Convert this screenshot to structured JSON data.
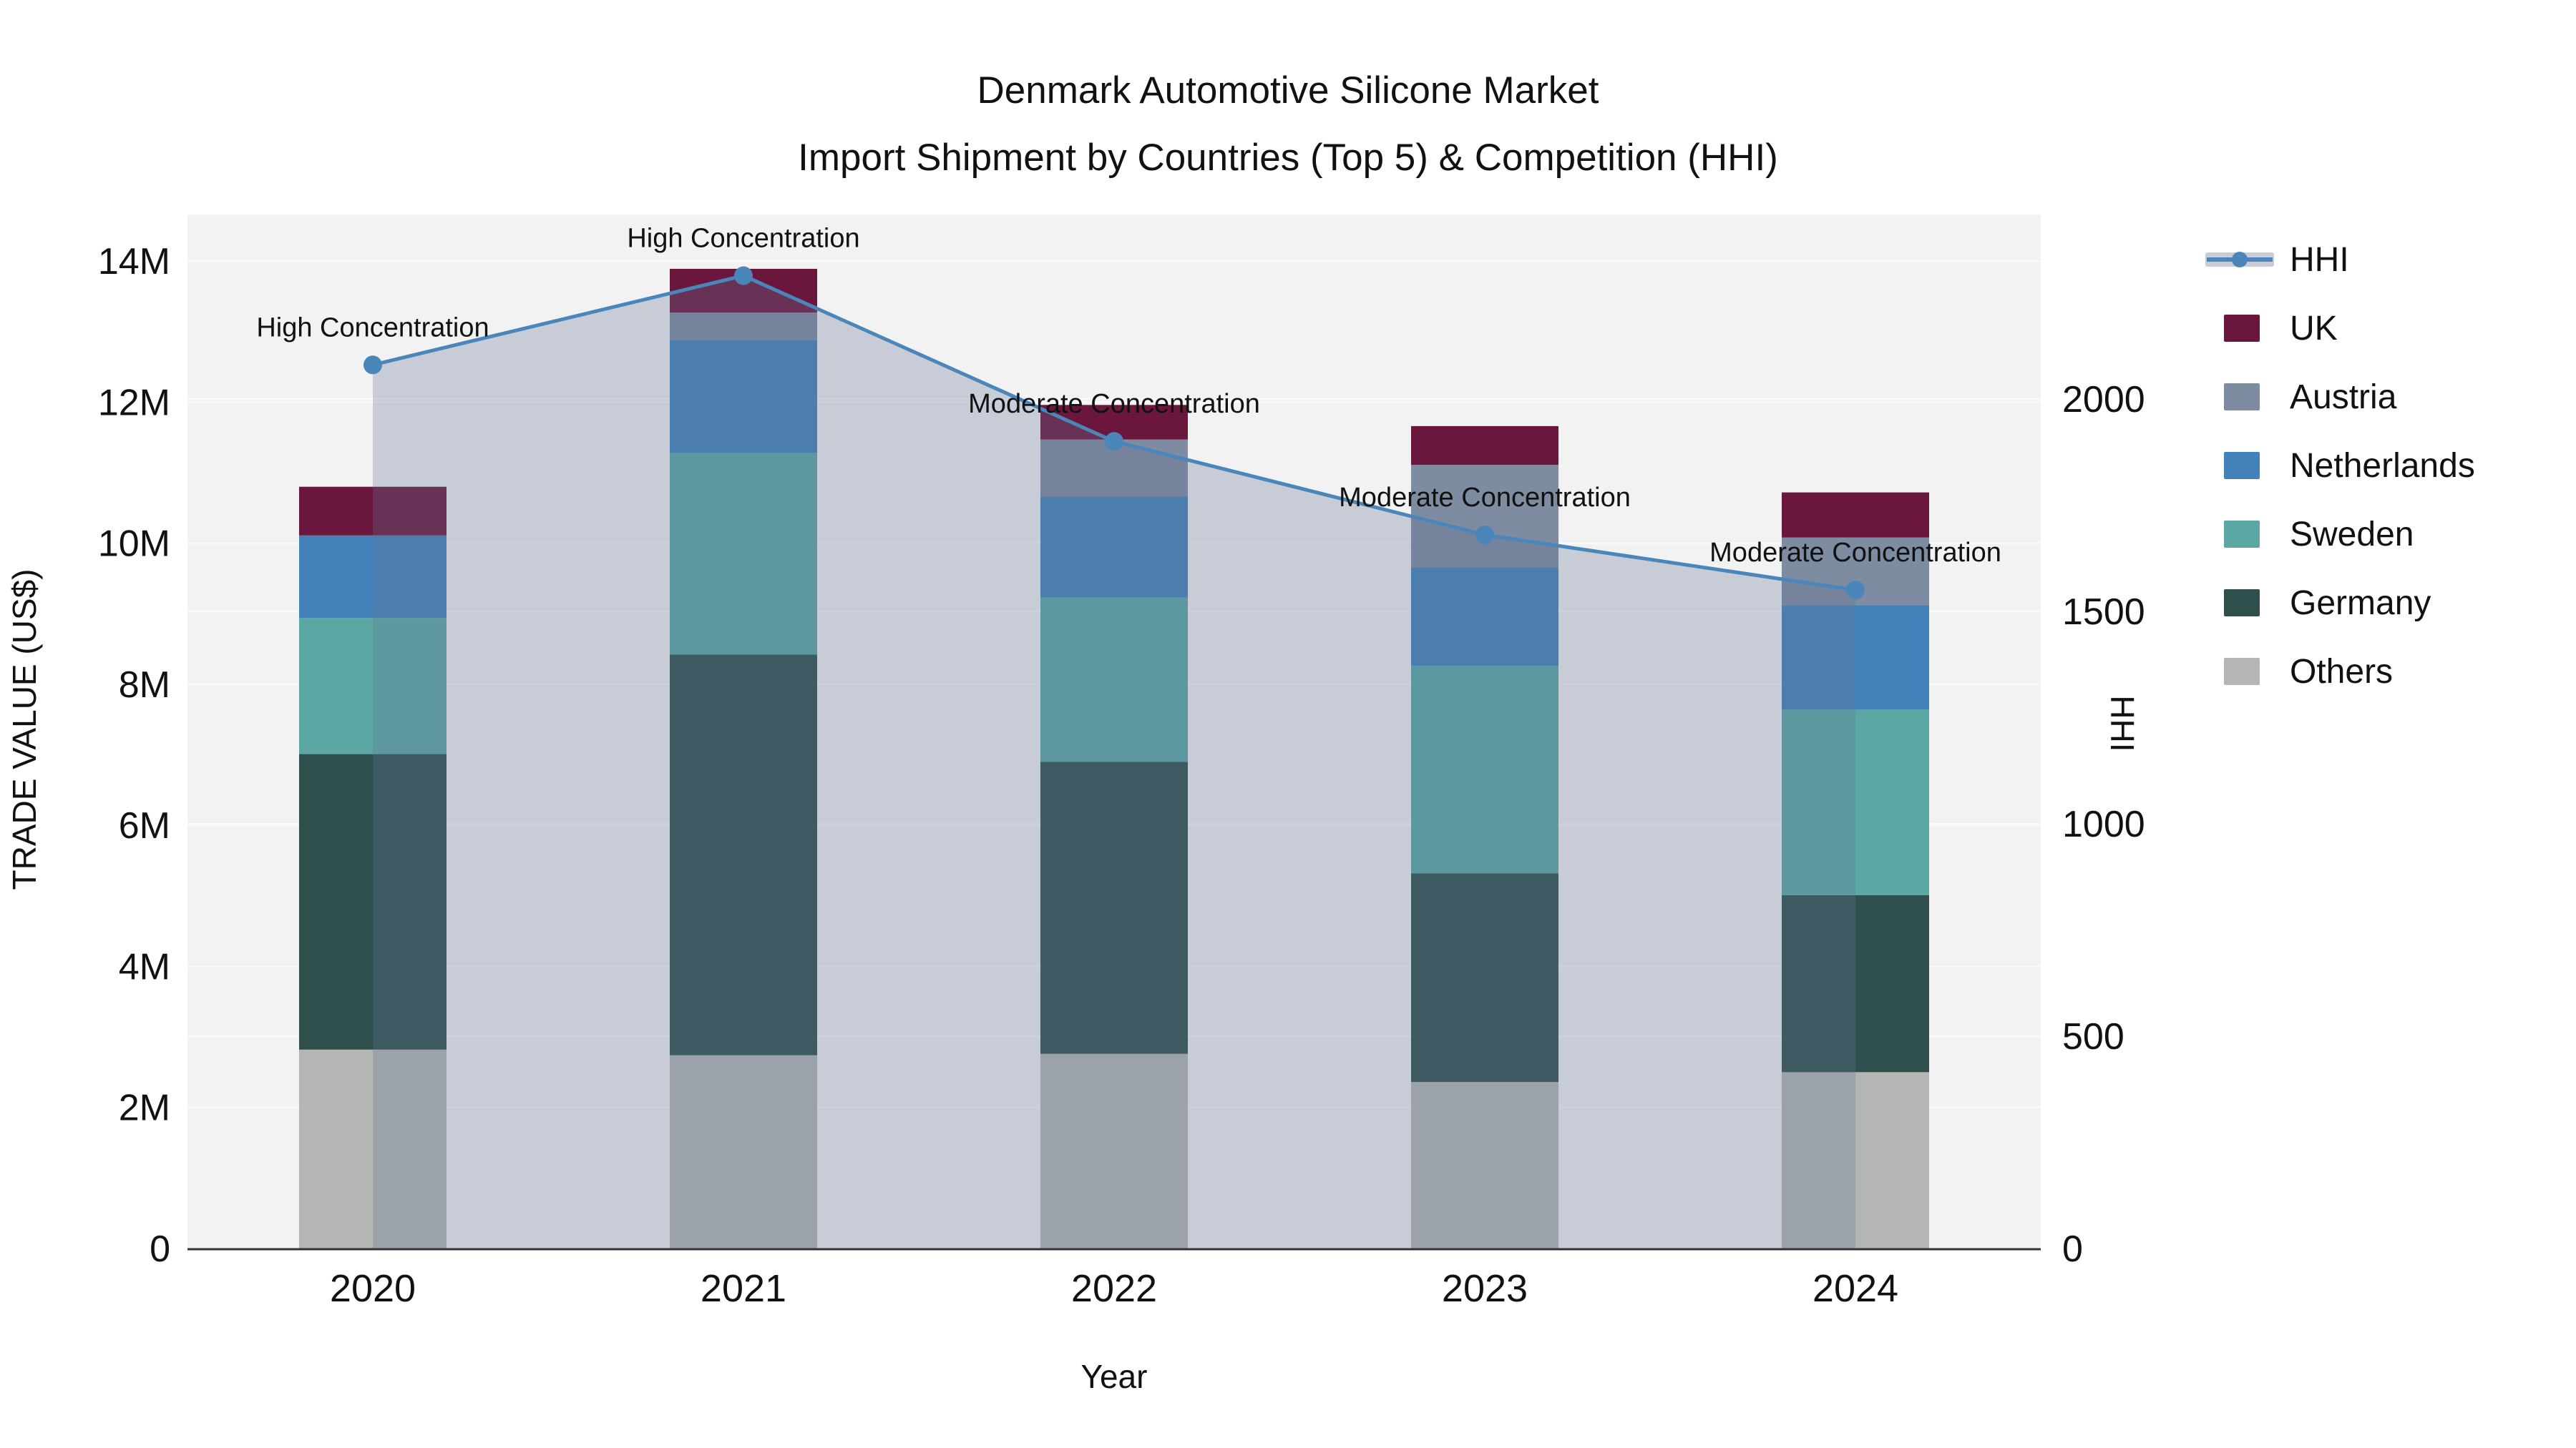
{
  "title": {
    "line1": "Denmark Automotive Silicone Market",
    "line2": "Import Shipment by Countries (Top 5) & Competition (HHI)"
  },
  "axes": {
    "x": {
      "title": "Year",
      "ticks": [
        "2020",
        "2021",
        "2022",
        "2023",
        "2024"
      ]
    },
    "y_left": {
      "title": "TRADE VALUE (US$)",
      "tick_labels": [
        "0",
        "2M",
        "4M",
        "6M",
        "8M",
        "10M",
        "12M",
        "14M"
      ],
      "tick_values": [
        0,
        2,
        4,
        6,
        8,
        10,
        12,
        14
      ]
    },
    "y_right": {
      "title": "HHI",
      "tick_labels": [
        "0",
        "500",
        "1000",
        "1500",
        "2000"
      ],
      "tick_values": [
        0,
        500,
        1000,
        1500,
        2000
      ]
    }
  },
  "legend": {
    "items": [
      {
        "label": "HHI",
        "type": "line",
        "line_color": "#4a86ba",
        "band_color": "#c7ccd6"
      },
      {
        "label": "UK",
        "type": "swatch",
        "color": "#6b163c"
      },
      {
        "label": "Austria",
        "type": "swatch",
        "color": "#7d8ca0"
      },
      {
        "label": "Netherlands",
        "type": "swatch",
        "color": "#4381ba"
      },
      {
        "label": "Sweden",
        "type": "swatch",
        "color": "#5ba7a4"
      },
      {
        "label": "Germany",
        "type": "swatch",
        "color": "#2e4f4c"
      },
      {
        "label": "Others",
        "type": "swatch",
        "color": "#b3b6b3"
      }
    ]
  },
  "chart_data": {
    "type": "bar",
    "stacked": true,
    "categories": [
      "2020",
      "2021",
      "2022",
      "2023",
      "2024"
    ],
    "bar_value_unit": "million US$",
    "series": [
      {
        "name": "Others",
        "color": "#b3b6b3",
        "values": [
          2.82,
          2.74,
          2.76,
          2.36,
          2.5
        ]
      },
      {
        "name": "Germany",
        "color": "#2e4f4c",
        "values": [
          4.19,
          5.68,
          4.14,
          2.96,
          2.51
        ]
      },
      {
        "name": "Sweden",
        "color": "#5ba7a4",
        "values": [
          1.93,
          2.86,
          2.33,
          2.94,
          2.63
        ]
      },
      {
        "name": "Netherlands",
        "color": "#4381ba",
        "values": [
          1.17,
          1.6,
          1.43,
          1.4,
          1.48
        ]
      },
      {
        "name": "Austria",
        "color": "#7d8ca0",
        "values": [
          0,
          0.39,
          0.81,
          1.45,
          0.96
        ]
      },
      {
        "name": "UK",
        "color": "#6b163c",
        "values": [
          0.69,
          0.62,
          0.49,
          0.55,
          0.64
        ]
      }
    ],
    "bar_totals": [
      10.8,
      13.89,
      11.96,
      11.66,
      10.72
    ],
    "line_series": {
      "name": "HHI",
      "axis": "right",
      "color": "#4a86ba",
      "fill_color": "rgba(100,115,150,0.30)",
      "values": [
        2080,
        2290,
        1900,
        1680,
        1550
      ]
    },
    "annotations": [
      {
        "category": "2020",
        "text": "High Concentration"
      },
      {
        "category": "2021",
        "text": "High Concentration"
      },
      {
        "category": "2022",
        "text": "Moderate Concentration"
      },
      {
        "category": "2023",
        "text": "Moderate Concentration"
      },
      {
        "category": "2024",
        "text": "Moderate Concentration"
      }
    ],
    "xlabel": "Year",
    "ylabel_left": "TRADE VALUE (US$)",
    "ylabel_right": "HHI",
    "y_left_range_M": [
      0,
      14.66
    ],
    "y_right_range": [
      0,
      2434
    ],
    "grid": true,
    "legend_position": "right"
  }
}
